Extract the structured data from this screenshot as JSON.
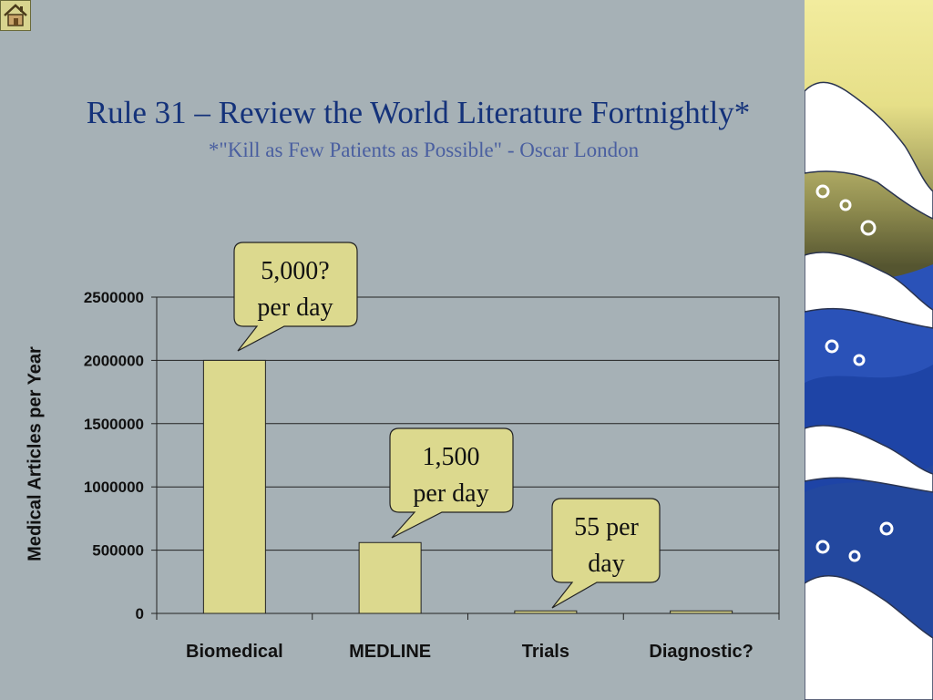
{
  "slide": {
    "title": "Rule 31 – Review the World Literature Fortnightly*",
    "subtitle": "*\"Kill as Few Patients as Possible\" - Oscar London"
  },
  "nav": {
    "home_icon": "home-icon"
  },
  "colors": {
    "bar_fill": "#dcd98e",
    "callout_fill": "#dcd98e",
    "title": "#14327a",
    "subtitle": "#4a5fa0"
  },
  "chart_data": {
    "type": "bar",
    "categories": [
      "Biomedical",
      "MEDLINE",
      "Trials",
      "Diagnostic?"
    ],
    "values": [
      2000000,
      560000,
      20000,
      20000
    ],
    "ylabel": "Medical Articles per Year",
    "ylim": [
      0,
      2500000
    ],
    "yticks": [
      "0",
      "500000",
      "1000000",
      "1500000",
      "2000000",
      "2500000"
    ],
    "grid": true,
    "annotations": [
      {
        "lines": [
          "5,000?",
          "per day"
        ],
        "category": "Biomedical"
      },
      {
        "lines": [
          "1,500",
          "per day"
        ],
        "category": "MEDLINE"
      },
      {
        "lines": [
          "55 per",
          "day"
        ],
        "category": "Trials"
      }
    ]
  }
}
